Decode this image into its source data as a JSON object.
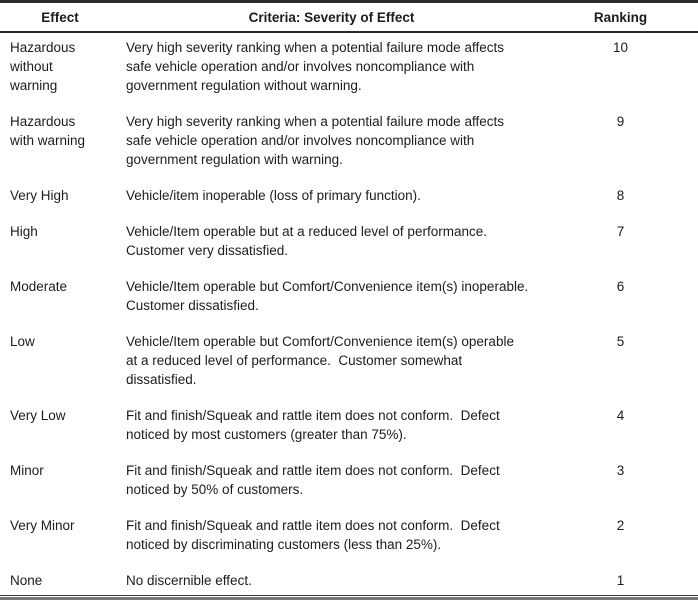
{
  "table": {
    "headers": {
      "effect": "Effect",
      "criteria": "Criteria: Severity of Effect",
      "ranking": "Ranking"
    },
    "rows": [
      {
        "effect": "Hazardous\nwithout\nwarning",
        "criteria": "Very high severity ranking when a potential failure mode affects\nsafe vehicle operation and/or involves noncompliance with\ngovernment regulation without warning.",
        "ranking": "10"
      },
      {
        "effect": "Hazardous\nwith warning",
        "criteria": "Very high severity ranking when a potential failure mode affects\nsafe vehicle operation and/or involves noncompliance with\ngovernment regulation with warning.",
        "ranking": "9"
      },
      {
        "effect": "Very High",
        "criteria": "Vehicle/item inoperable (loss of primary function).",
        "ranking": "8"
      },
      {
        "effect": "High",
        "criteria": "Vehicle/Item operable but at a reduced level of performance.\nCustomer very dissatisfied.",
        "ranking": "7"
      },
      {
        "effect": "Moderate",
        "criteria": "Vehicle/Item operable but Comfort/Convenience item(s) inoperable.\nCustomer dissatisfied.",
        "ranking": "6"
      },
      {
        "effect": "Low",
        "criteria": "Vehicle/Item operable but Comfort/Convenience item(s) operable\nat a reduced level of performance.  Customer somewhat\ndissatisfied.",
        "ranking": "5"
      },
      {
        "effect": "Very Low",
        "criteria": "Fit and finish/Squeak and rattle item does not conform.  Defect\nnoticed by most customers (greater than 75%).",
        "ranking": "4"
      },
      {
        "effect": "Minor",
        "criteria": "Fit and finish/Squeak and rattle item does not conform.  Defect\nnoticed by 50% of customers.",
        "ranking": "3"
      },
      {
        "effect": "Very Minor",
        "criteria": "Fit and finish/Squeak and rattle item does not conform.  Defect\nnoticed by discriminating customers (less than 25%).",
        "ranking": "2"
      },
      {
        "effect": "None",
        "criteria": "No discernible effect.",
        "ranking": "1"
      }
    ]
  },
  "colors": {
    "text": "#1c1c1c",
    "rule_heavy": "#2a2a2a",
    "rule_bottom_gray": "#777777",
    "background": "#ffffff"
  }
}
